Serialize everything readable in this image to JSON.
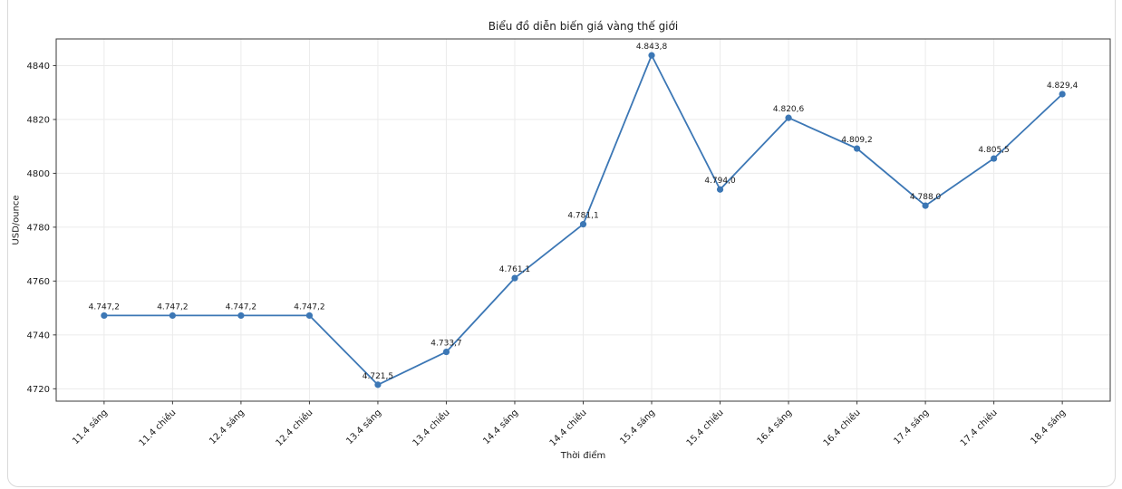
{
  "page": {
    "background": "#ffffff"
  },
  "card": {
    "background": "#ffffff",
    "border_color": "#d9d9d9"
  },
  "chart_data": {
    "type": "line",
    "title": "Biểu đồ diễn biến giá vàng thế giới",
    "xlabel": "Thời điểm",
    "ylabel": "USD/ounce",
    "categories": [
      "11.4 sáng",
      "11.4 chiều",
      "12.4 sáng",
      "12.4 chiều",
      "13.4 sáng",
      "13.4 chiều",
      "14.4 sáng",
      "14.4 chiều",
      "15.4 sáng",
      "15.4 chiều",
      "16.4 sáng",
      "16.4 chiều",
      "17.4 sáng",
      "17.4 chiều",
      "18.4 sáng"
    ],
    "series": [
      {
        "color": "#3c77b5",
        "marker": "circle",
        "values": [
          4747.2,
          4747.2,
          4747.2,
          4747.2,
          4721.5,
          4733.7,
          4761.1,
          4781.1,
          4843.8,
          4794.0,
          4820.6,
          4809.2,
          4788.0,
          4805.5,
          4829.4
        ],
        "point_labels": [
          "4.747,2",
          "4.747,2",
          "4.747,2",
          "4.747,2",
          "4.721,5",
          "4.733,7",
          "4.761,1",
          "4.781,1",
          "4.843,8",
          "4.794,0",
          "4.820,6",
          "4.809,2",
          "4.788,0",
          "4.805,5",
          "4.829,4"
        ]
      }
    ],
    "yticks": [
      4720,
      4740,
      4760,
      4780,
      4800,
      4820,
      4840
    ],
    "ylim": [
      4715.4,
      4849.9
    ],
    "grid": true,
    "legend": "none",
    "x_tick_rotation": 45
  },
  "style": {
    "grid_color": "#ebebeb",
    "axis_color": "#3a3a3a",
    "tick_text_color": "#1a1a1a",
    "point_label_color": "#1a1a1a"
  }
}
